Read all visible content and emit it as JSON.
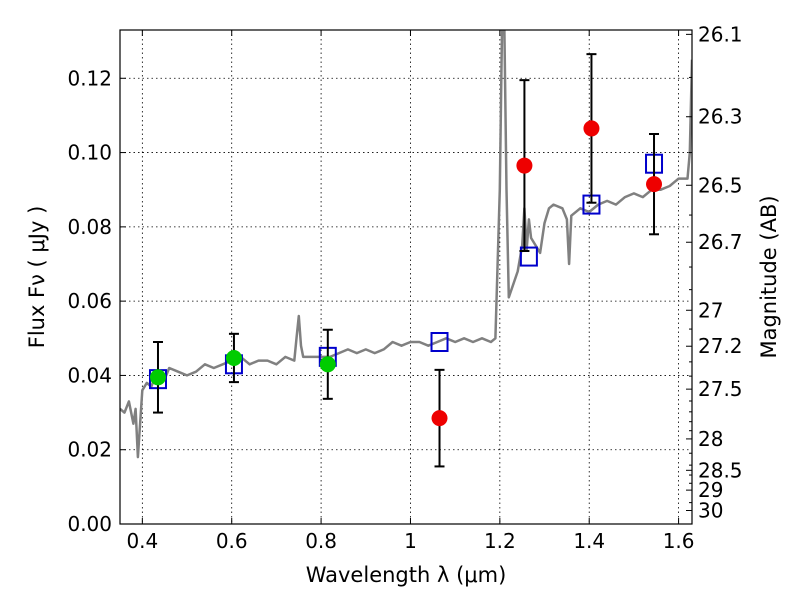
{
  "chart_data": {
    "type": "scatter",
    "xlabel": "Wavelength  λ (μm)",
    "ylabel": "Flux  Fν  ( μJy )",
    "ylabel_right": "Magnitude (AB)",
    "xlim": [
      0.35,
      1.63
    ],
    "ylim": [
      0.0,
      0.133
    ],
    "grid": true,
    "x_ticks": [
      0.4,
      0.6,
      0.8,
      1.0,
      1.2,
      1.4,
      1.6
    ],
    "x_tick_labels": [
      "0.4",
      "0.6",
      "0.8",
      "1",
      "1.2",
      "1.4",
      "1.6"
    ],
    "y_ticks": [
      0.0,
      0.02,
      0.04,
      0.06,
      0.08,
      0.1,
      0.12
    ],
    "y_tick_labels": [
      "0.00",
      "0.02",
      "0.04",
      "0.06",
      "0.08",
      "0.10",
      "0.12"
    ],
    "right_tick_labels": [
      "26.1",
      "26.3",
      "26.5",
      "26.7",
      "27",
      "27.2",
      "27.5",
      "28",
      "28.5",
      "29",
      "30"
    ],
    "right_tick_values": [
      26.1,
      26.3,
      26.5,
      26.7,
      27,
      27.2,
      27.5,
      28,
      28.5,
      29,
      30
    ],
    "series": [
      {
        "marker": "line",
        "color": "#808080",
        "x": [
          0.35,
          0.36,
          0.37,
          0.38,
          0.385,
          0.39,
          0.4,
          0.41,
          0.42,
          0.43,
          0.44,
          0.45,
          0.46,
          0.48,
          0.5,
          0.52,
          0.54,
          0.56,
          0.58,
          0.6,
          0.62,
          0.64,
          0.66,
          0.68,
          0.7,
          0.72,
          0.74,
          0.745,
          0.75,
          0.755,
          0.76,
          0.78,
          0.8,
          0.82,
          0.84,
          0.86,
          0.88,
          0.9,
          0.92,
          0.94,
          0.96,
          0.98,
          1.0,
          1.02,
          1.04,
          1.06,
          1.08,
          1.1,
          1.12,
          1.14,
          1.16,
          1.18,
          1.19,
          1.195,
          1.2,
          1.205,
          1.21,
          1.215,
          1.22,
          1.24,
          1.25,
          1.255,
          1.26,
          1.265,
          1.27,
          1.28,
          1.29,
          1.3,
          1.31,
          1.32,
          1.34,
          1.35,
          1.355,
          1.36,
          1.38,
          1.4,
          1.42,
          1.44,
          1.46,
          1.48,
          1.5,
          1.52,
          1.54,
          1.56,
          1.58,
          1.59,
          1.6,
          1.61,
          1.62,
          1.625,
          1.63
        ],
        "y": [
          0.031,
          0.03,
          0.033,
          0.027,
          0.031,
          0.018,
          0.036,
          0.038,
          0.037,
          0.04,
          0.041,
          0.039,
          0.042,
          0.041,
          0.04,
          0.041,
          0.043,
          0.042,
          0.043,
          0.044,
          0.045,
          0.043,
          0.044,
          0.044,
          0.043,
          0.045,
          0.044,
          0.05,
          0.056,
          0.048,
          0.045,
          0.045,
          0.045,
          0.045,
          0.046,
          0.047,
          0.046,
          0.047,
          0.046,
          0.047,
          0.049,
          0.048,
          0.049,
          0.049,
          0.048,
          0.049,
          0.05,
          0.049,
          0.05,
          0.049,
          0.05,
          0.049,
          0.05,
          0.07,
          0.09,
          0.135,
          0.135,
          0.09,
          0.061,
          0.068,
          0.075,
          0.085,
          0.074,
          0.082,
          0.077,
          0.075,
          0.073,
          0.081,
          0.085,
          0.086,
          0.085,
          0.082,
          0.07,
          0.083,
          0.085,
          0.084,
          0.086,
          0.087,
          0.086,
          0.088,
          0.089,
          0.088,
          0.09,
          0.09,
          0.091,
          0.092,
          0.093,
          0.093,
          0.093,
          0.1,
          0.125
        ]
      },
      {
        "marker": "open-square",
        "color": "#0000cc",
        "x": [
          0.435,
          0.605,
          0.815,
          1.065,
          1.265,
          1.405,
          1.545
        ],
        "y": [
          0.039,
          0.043,
          0.045,
          0.049,
          0.072,
          0.086,
          0.097
        ]
      },
      {
        "marker": "filled-circle",
        "color": "#00cc00",
        "x": [
          0.435,
          0.605,
          0.815
        ],
        "y": [
          0.0395,
          0.0447,
          0.043
        ],
        "yerr": [
          0.0095,
          0.0065,
          0.0093
        ]
      },
      {
        "marker": "filled-circle",
        "color": "#ee0000",
        "x": [
          1.065,
          1.255,
          1.405,
          1.545
        ],
        "y": [
          0.0285,
          0.0965,
          0.1065,
          0.0915
        ],
        "yerr": [
          0.013,
          0.023,
          0.02,
          0.0135
        ]
      }
    ]
  }
}
